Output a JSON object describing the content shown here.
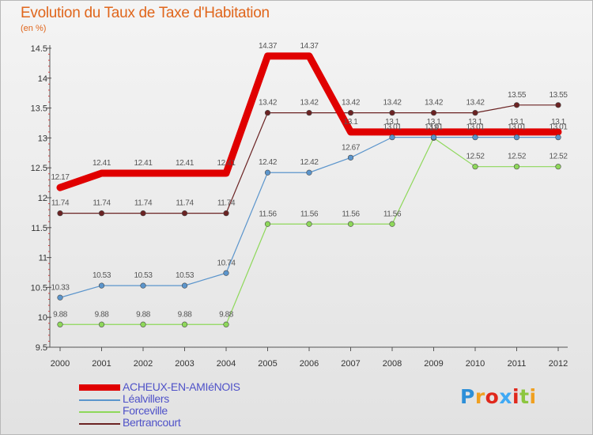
{
  "chart_data": {
    "type": "line",
    "title": "Evolution du Taux de Taxe d'Habitation",
    "unit_label": "(en %)",
    "xlabel": "",
    "ylabel": "",
    "ylim": [
      9.5,
      14.5
    ],
    "yticks": [
      9.5,
      10,
      10.5,
      11,
      11.5,
      12,
      12.5,
      13,
      13.5,
      14,
      14.5
    ],
    "categories": [
      "2000",
      "2001",
      "2002",
      "2003",
      "2004",
      "2005",
      "2006",
      "2007",
      "2008",
      "2009",
      "2010",
      "2011",
      "2012"
    ],
    "series": [
      {
        "name": "ACHEUX-EN-AMIéNOIS",
        "color": "#e00000",
        "values": [
          12.17,
          12.41,
          12.41,
          12.41,
          12.41,
          14.37,
          14.37,
          13.1,
          13.1,
          13.1,
          13.1,
          13.1,
          13.1
        ]
      },
      {
        "name": "Léalvillers",
        "color": "#5b95cc",
        "values": [
          10.33,
          10.53,
          10.53,
          10.53,
          10.74,
          12.42,
          12.42,
          12.67,
          13.01,
          13.01,
          13.01,
          13.01,
          13.01
        ]
      },
      {
        "name": "Forceville",
        "color": "#8ed85a",
        "values": [
          9.88,
          9.88,
          9.88,
          9.88,
          9.88,
          11.56,
          11.56,
          11.56,
          11.56,
          13.0,
          12.52,
          12.52,
          12.52
        ]
      },
      {
        "name": "Bertrancourt",
        "color": "#6b2323",
        "values": [
          11.74,
          11.74,
          11.74,
          11.74,
          11.74,
          13.42,
          13.42,
          13.42,
          13.42,
          13.42,
          13.42,
          13.55,
          13.55
        ]
      }
    ],
    "data_labels": [
      [
        "12.17",
        "12.41",
        "12.41",
        "12.41",
        "12.41",
        "14.37",
        "14.37",
        "13.1",
        "13.1",
        "13.1",
        "13.1",
        "13.1",
        "13.1"
      ],
      [
        "10.33",
        "10.53",
        "10.53",
        "10.53",
        "10.74",
        "12.42",
        "12.42",
        "12.67",
        "13.01",
        "13.01",
        "13.01",
        "13.01",
        "13.01"
      ],
      [
        "9.88",
        "9.88",
        "9.88",
        "9.88",
        "9.88",
        "11.56",
        "11.56",
        "11.56",
        "11.56",
        "13",
        "12.52",
        "12.52",
        "12.52"
      ],
      [
        "11.74",
        "11.74",
        "11.74",
        "11.74",
        "11.74",
        "13.42",
        "13.42",
        "13.42",
        "13.42",
        "13.42",
        "13.42",
        "13.55",
        "13.55"
      ]
    ],
    "legend": "bottom-left"
  },
  "logo": {
    "letters": [
      "P",
      "r",
      "o",
      "x",
      "i",
      "t",
      "i"
    ],
    "colors": [
      "#2d8fd8",
      "#f0a020",
      "#e0281c",
      "#3fa9f5",
      "#e0281c",
      "#8cc63f",
      "#f0a020"
    ]
  }
}
